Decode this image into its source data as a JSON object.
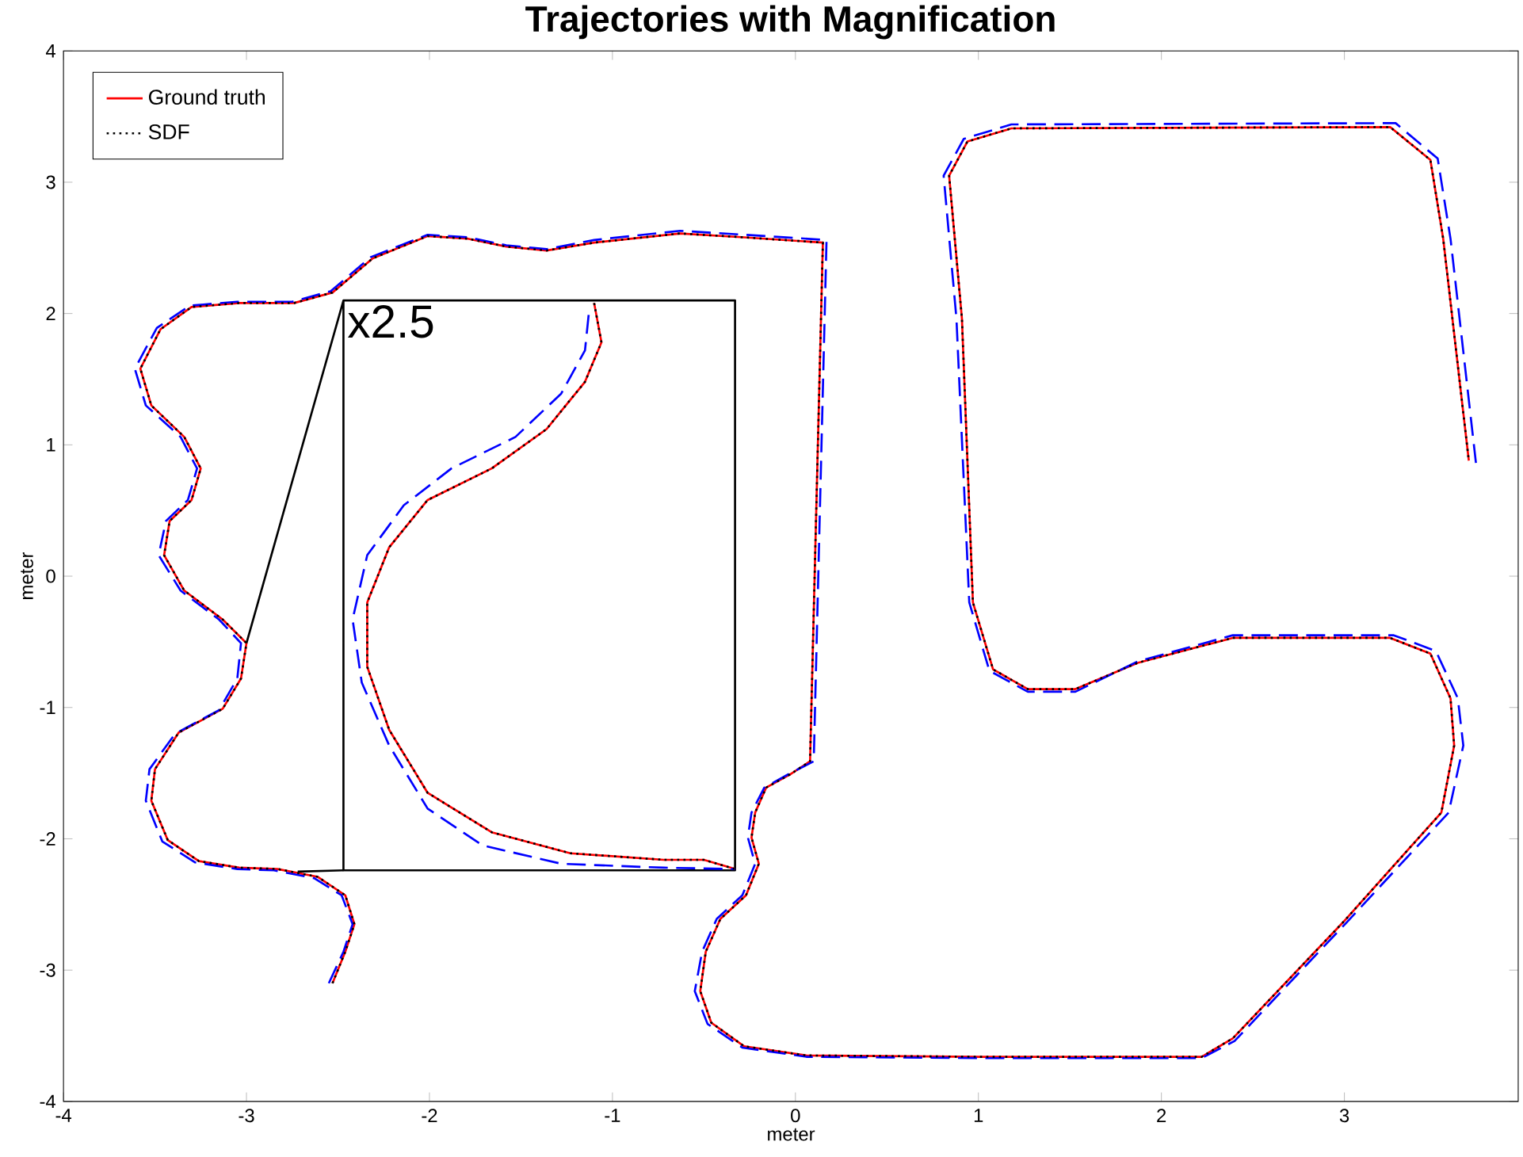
{
  "chart_data": {
    "type": "line",
    "title": "Trajectories with Magnification",
    "xlabel": "meter",
    "ylabel": "meter",
    "xlim": [
      -4,
      3.95
    ],
    "ylim": [
      -4,
      4
    ],
    "xticks": [
      -4,
      -3,
      -2,
      -1,
      0,
      1,
      2,
      3
    ],
    "yticks": [
      -4,
      -3,
      -2,
      -1,
      0,
      1,
      2,
      3,
      4
    ],
    "grid": false,
    "legend": "top left",
    "annotations": [
      "x2.5"
    ],
    "series": [
      {
        "name": "Ground truth",
        "color": "#ff0000",
        "line_style": "solid",
        "x": [
          -2.53,
          -2.46,
          -2.41,
          -2.46,
          -2.61,
          -2.83,
          -3.04,
          -3.26,
          -3.43,
          -3.52,
          -3.5,
          -3.37,
          -3.13,
          -3.03,
          -3.0,
          -3.13,
          -3.34,
          -3.45,
          -3.42,
          -3.3,
          -3.25,
          -3.34,
          -3.52,
          -3.58,
          -3.47,
          -3.3,
          -3.04,
          -2.74,
          -2.53,
          -2.31,
          -2.01,
          -1.79,
          -1.58,
          -1.36,
          -1.1,
          -0.63,
          -0.28,
          0.15,
          0.08,
          -0.03,
          -0.16,
          -0.22,
          -0.24,
          -0.2,
          -0.27,
          -0.41,
          -0.49,
          -0.52,
          -0.46,
          -0.28,
          0.06,
          1.01,
          2.22,
          2.39,
          2.99,
          3.53,
          3.6,
          3.58,
          3.47,
          3.25,
          2.39,
          1.87,
          1.53,
          1.27,
          1.08,
          0.97,
          0.91,
          0.84,
          0.94,
          1.18,
          3.25,
          3.47,
          3.54,
          3.68
        ],
        "values": [
          -3.1,
          -2.86,
          -2.65,
          -2.43,
          -2.29,
          -2.23,
          -2.22,
          -2.17,
          -2.01,
          -1.71,
          -1.47,
          -1.19,
          -1.01,
          -0.78,
          -0.51,
          -0.33,
          -0.11,
          0.16,
          0.42,
          0.58,
          0.82,
          1.06,
          1.3,
          1.58,
          1.88,
          2.05,
          2.08,
          2.08,
          2.16,
          2.42,
          2.59,
          2.57,
          2.51,
          2.48,
          2.54,
          2.61,
          2.58,
          2.54,
          -1.41,
          -1.51,
          -1.61,
          -1.8,
          -1.99,
          -2.19,
          -2.43,
          -2.61,
          -2.86,
          -3.16,
          -3.4,
          -3.58,
          -3.65,
          -3.66,
          -3.66,
          -3.52,
          -2.64,
          -1.8,
          -1.29,
          -0.93,
          -0.59,
          -0.47,
          -0.47,
          -0.66,
          -0.86,
          -0.86,
          -0.71,
          -0.2,
          1.96,
          3.05,
          3.31,
          3.41,
          3.42,
          3.17,
          2.57,
          0.88
        ]
      },
      {
        "color": "#0000ff",
        "line_style": "dashed",
        "x": [
          -2.55,
          -2.47,
          -2.42,
          -2.48,
          -2.63,
          -2.85,
          -3.05,
          -3.28,
          -3.46,
          -3.55,
          -3.53,
          -3.39,
          -3.15,
          -3.05,
          -3.03,
          -3.15,
          -3.36,
          -3.48,
          -3.44,
          -3.32,
          -3.27,
          -3.36,
          -3.55,
          -3.61,
          -3.49,
          -3.31,
          -3.05,
          -2.75,
          -2.54,
          -2.32,
          -2.01,
          -1.79,
          -1.58,
          -1.36,
          -1.1,
          -0.63,
          -0.28,
          0.17,
          0.1,
          -0.04,
          -0.17,
          -0.24,
          -0.26,
          -0.22,
          -0.29,
          -0.43,
          -0.51,
          -0.55,
          -0.48,
          -0.29,
          0.06,
          1.01,
          2.22,
          2.4,
          3.01,
          3.57,
          3.65,
          3.62,
          3.5,
          3.27,
          2.39,
          1.87,
          1.53,
          1.27,
          1.06,
          0.95,
          0.88,
          0.81,
          0.92,
          1.18,
          3.28,
          3.51,
          3.58,
          3.72
        ],
        "values": [
          -3.1,
          -2.86,
          -2.65,
          -2.43,
          -2.3,
          -2.24,
          -2.23,
          -2.18,
          -2.02,
          -1.71,
          -1.47,
          -1.2,
          -1.02,
          -0.78,
          -0.51,
          -0.33,
          -0.11,
          0.16,
          0.42,
          0.58,
          0.82,
          1.06,
          1.3,
          1.58,
          1.89,
          2.06,
          2.09,
          2.09,
          2.17,
          2.43,
          2.6,
          2.58,
          2.52,
          2.49,
          2.56,
          2.63,
          2.6,
          2.56,
          -1.41,
          -1.51,
          -1.61,
          -1.8,
          -1.99,
          -2.19,
          -2.43,
          -2.61,
          -2.86,
          -3.16,
          -3.41,
          -3.59,
          -3.66,
          -3.67,
          -3.67,
          -3.54,
          -2.64,
          -1.8,
          -1.29,
          -0.93,
          -0.57,
          -0.45,
          -0.45,
          -0.65,
          -0.88,
          -0.88,
          -0.72,
          -0.2,
          1.96,
          3.05,
          3.33,
          3.44,
          3.45,
          3.18,
          2.57,
          0.85
        ]
      },
      {
        "name": "SDF",
        "color": "#000000",
        "line_style": "dotted",
        "x": [
          -2.53,
          -2.46,
          -2.41,
          -2.46,
          -2.61,
          -2.83,
          -3.04,
          -3.26,
          -3.43,
          -3.52,
          -3.5,
          -3.37,
          -3.13,
          -3.03,
          -3.0,
          -3.13,
          -3.34,
          -3.45,
          -3.42,
          -3.3,
          -3.25,
          -3.34,
          -3.52,
          -3.58,
          -3.47,
          -3.3,
          -3.04,
          -2.74,
          -2.53,
          -2.31,
          -2.01,
          -1.79,
          -1.58,
          -1.36,
          -1.1,
          -0.63,
          -0.28,
          0.15,
          0.08,
          -0.03,
          -0.16,
          -0.22,
          -0.24,
          -0.2,
          -0.27,
          -0.41,
          -0.49,
          -0.52,
          -0.46,
          -0.28,
          0.06,
          1.01,
          2.22,
          2.39,
          2.99,
          3.53,
          3.6,
          3.58,
          3.47,
          3.25,
          2.39,
          1.87,
          1.53,
          1.27,
          1.08,
          0.97,
          0.91,
          0.84,
          0.94,
          1.18,
          3.25,
          3.47,
          3.54,
          3.68
        ],
        "values": [
          -3.1,
          -2.86,
          -2.65,
          -2.43,
          -2.29,
          -2.23,
          -2.22,
          -2.17,
          -2.01,
          -1.71,
          -1.47,
          -1.19,
          -1.01,
          -0.78,
          -0.51,
          -0.33,
          -0.11,
          0.16,
          0.42,
          0.58,
          0.82,
          1.06,
          1.3,
          1.58,
          1.88,
          2.05,
          2.08,
          2.08,
          2.16,
          2.42,
          2.59,
          2.57,
          2.51,
          2.48,
          2.54,
          2.61,
          2.58,
          2.54,
          -1.41,
          -1.51,
          -1.61,
          -1.8,
          -1.99,
          -2.19,
          -2.43,
          -2.61,
          -2.86,
          -3.16,
          -3.4,
          -3.58,
          -3.65,
          -3.66,
          -3.66,
          -3.52,
          -2.64,
          -1.8,
          -1.29,
          -0.93,
          -0.59,
          -0.47,
          -0.47,
          -0.66,
          -0.86,
          -0.86,
          -0.71,
          -0.2,
          1.96,
          3.05,
          3.31,
          3.41,
          3.42,
          3.17,
          2.57,
          0.88
        ]
      },
      {
        "color": "#000000",
        "line_style": "solid",
        "x": [
          -3.0,
          -2.47,
          -0.33,
          -0.33,
          -2.47,
          -2.47
        ],
        "values": [
          -0.51,
          2.1,
          2.1,
          -2.24,
          -2.24,
          2.1
        ]
      },
      {
        "color": "#000000",
        "line_style": "solid",
        "x": [
          -2.47,
          -2.72
        ],
        "values": [
          -2.24,
          -2.25
        ]
      },
      {
        "color": "#ff0000",
        "line_style": "solid",
        "x": [
          -1.1,
          -1.06,
          -1.15,
          -1.36,
          -1.66,
          -2.01,
          -2.22,
          -2.34,
          -2.34,
          -2.22,
          -2.01,
          -1.66,
          -1.23,
          -0.72,
          -0.5,
          -0.33
        ],
        "values": [
          2.08,
          1.78,
          1.48,
          1.12,
          0.82,
          0.58,
          0.22,
          -0.2,
          -0.69,
          -1.17,
          -1.65,
          -1.95,
          -2.11,
          -2.16,
          -2.16,
          -2.23
        ]
      },
      {
        "color": "#0000ff",
        "line_style": "dashed",
        "x": [
          -1.13,
          -1.15,
          -1.28,
          -1.53,
          -1.88,
          -2.14,
          -2.34,
          -2.42,
          -2.37,
          -2.22,
          -2.01,
          -1.71,
          -1.28,
          -0.72,
          -0.33
        ],
        "values": [
          1.99,
          1.72,
          1.39,
          1.06,
          0.82,
          0.54,
          0.16,
          -0.33,
          -0.81,
          -1.29,
          -1.77,
          -2.05,
          -2.19,
          -2.22,
          -2.23
        ]
      },
      {
        "color": "#000000",
        "line_style": "dotted",
        "x": [
          -1.1,
          -1.06,
          -1.15,
          -1.36,
          -1.66,
          -2.01,
          -2.22,
          -2.34,
          -2.34,
          -2.22,
          -2.01,
          -1.66,
          -1.23,
          -0.72,
          -0.5,
          -0.33
        ],
        "values": [
          2.08,
          1.78,
          1.48,
          1.12,
          0.82,
          0.58,
          0.22,
          -0.2,
          -0.69,
          -1.17,
          -1.65,
          -1.95,
          -2.11,
          -2.16,
          -2.16,
          -2.23
        ]
      }
    ]
  }
}
